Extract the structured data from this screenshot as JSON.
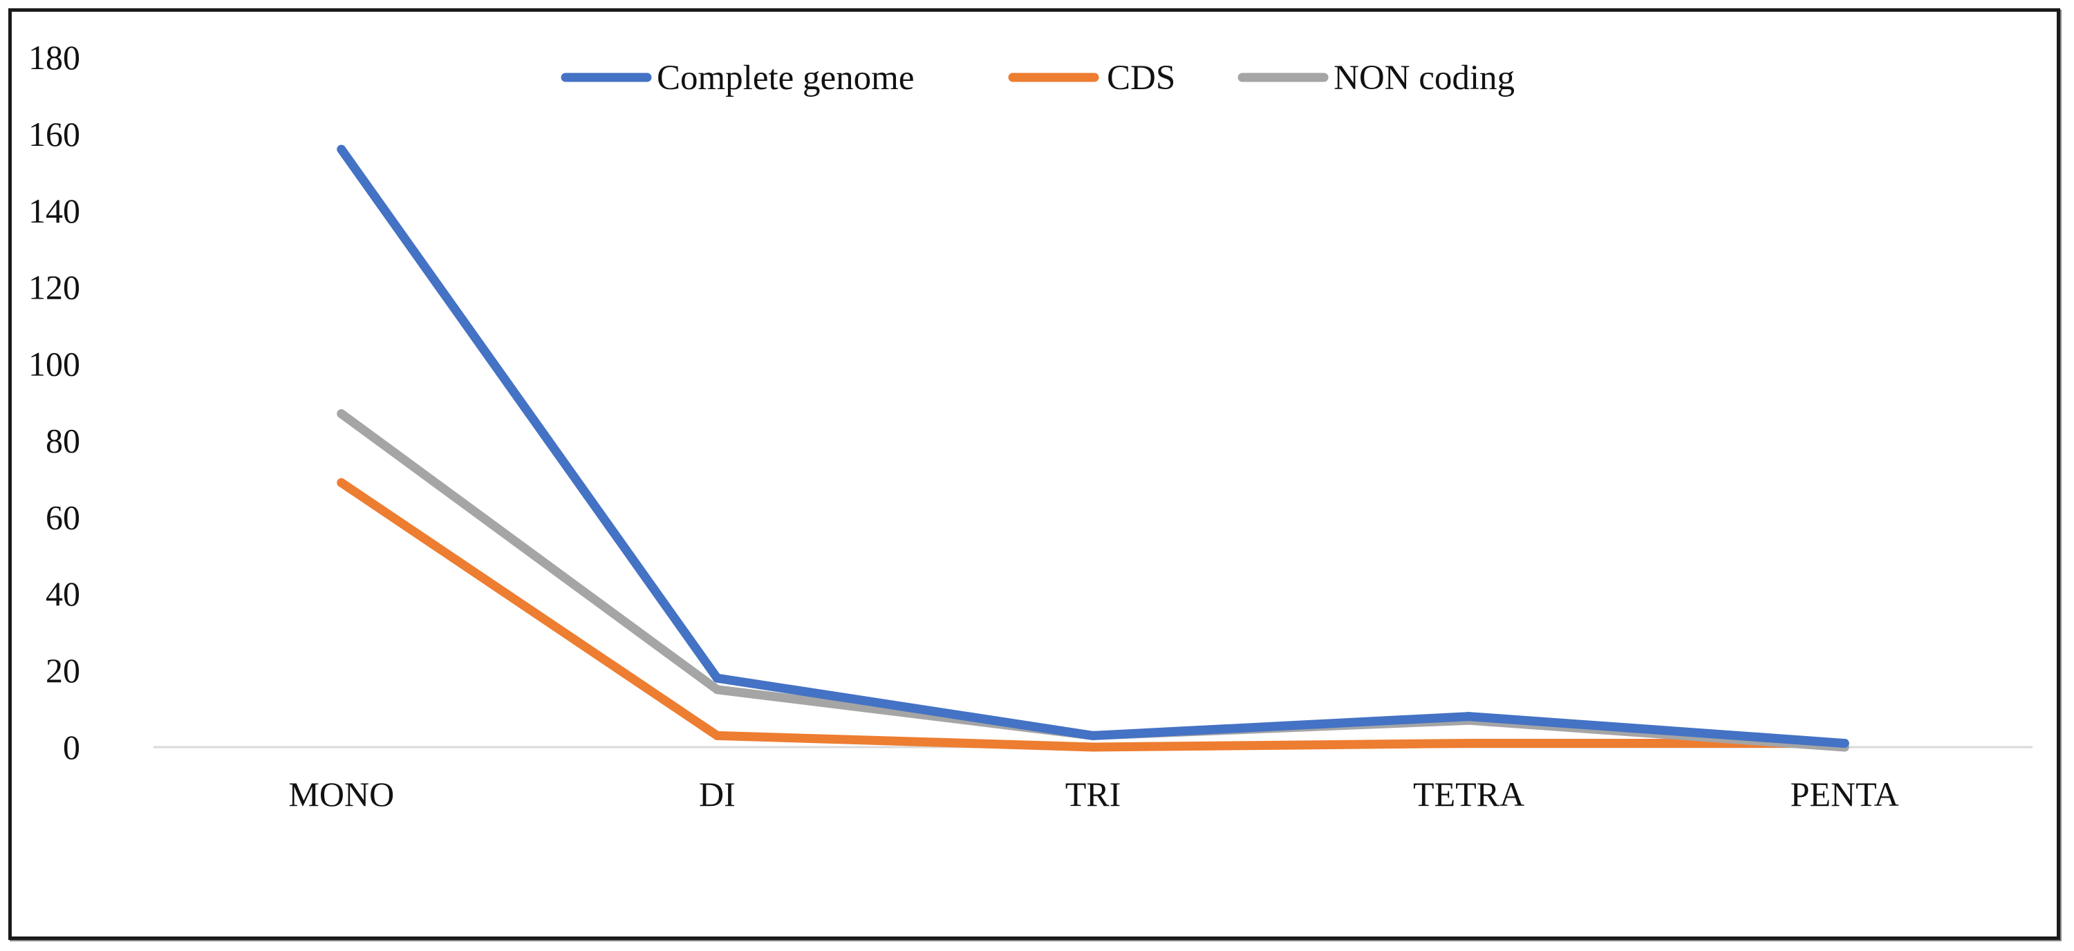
{
  "chart_data": {
    "type": "line",
    "title": "",
    "xlabel": "",
    "ylabel": "",
    "categories": [
      "MONO",
      "DI",
      "TRI",
      "TETRA",
      "PENTA"
    ],
    "ylim": [
      0,
      180
    ],
    "yticks": [
      0,
      20,
      40,
      60,
      80,
      100,
      120,
      140,
      160,
      180
    ],
    "grid": false,
    "legend_position": "top-center",
    "series": [
      {
        "name": "Complete genome",
        "color": "#4472C4",
        "values": [
          156,
          18,
          3,
          8,
          1
        ]
      },
      {
        "name": "CDS",
        "color": "#ED7D31",
        "values": [
          69,
          3,
          0,
          1,
          1
        ]
      },
      {
        "name": "NON coding",
        "color": "#A5A5A5",
        "values": [
          87,
          15,
          3,
          7,
          0
        ]
      }
    ]
  }
}
